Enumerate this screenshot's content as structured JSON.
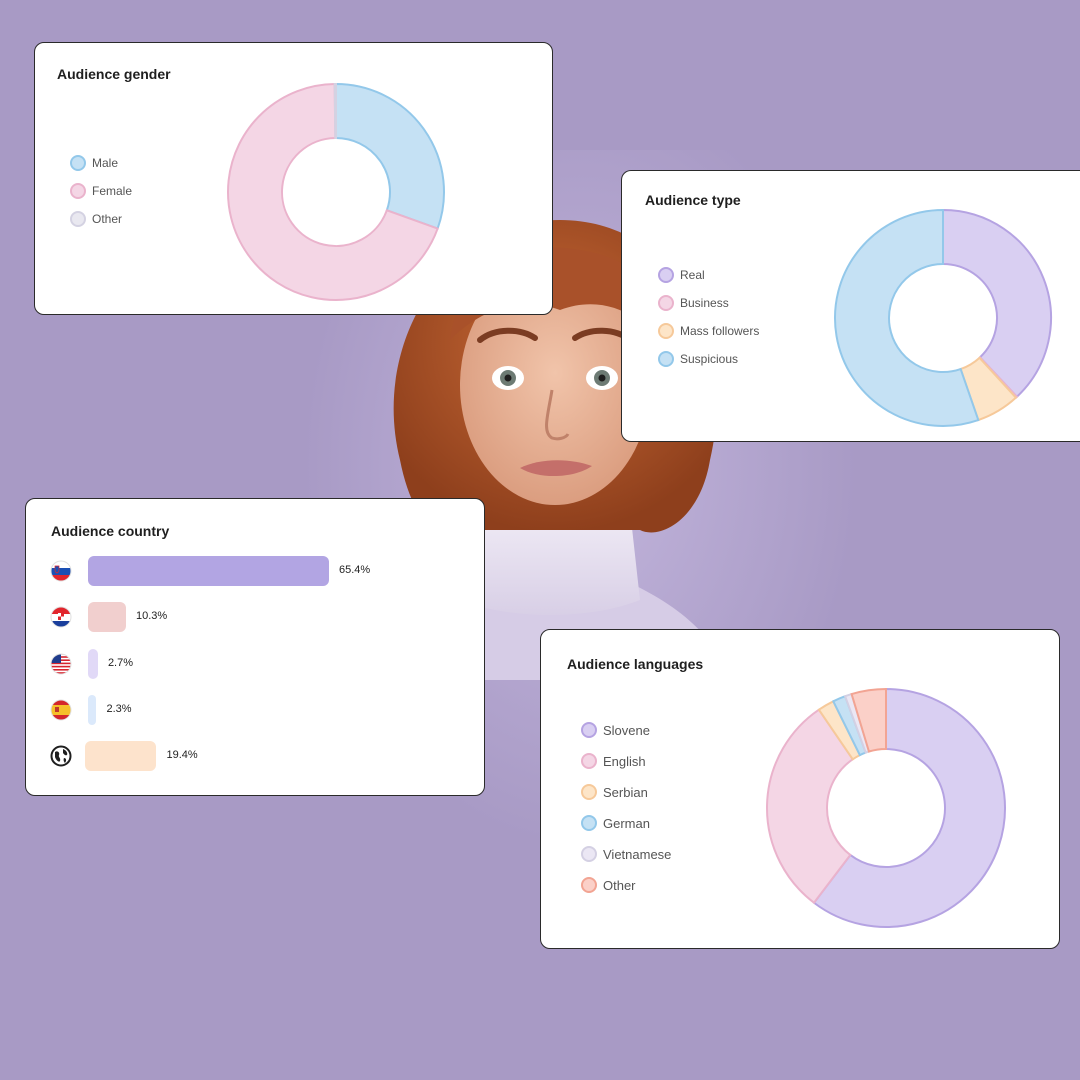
{
  "colors": {
    "background": "#a89ac5"
  },
  "gender": {
    "title": "Audience gender",
    "chart_data": {
      "type": "pie",
      "title": "Audience gender",
      "categories": [
        "Male",
        "Female",
        "Other"
      ],
      "values": [
        30.5,
        69.3,
        0.2
      ],
      "fill": [
        "#c5e1f4",
        "#f4d6e5",
        "#e9e8f0"
      ],
      "stroke": [
        "#93c8ea",
        "#eab3cc",
        "#d4d2e2"
      ]
    }
  },
  "type": {
    "title": "Audience type",
    "chart_data": {
      "type": "pie",
      "title": "Audience type",
      "categories": [
        "Real",
        "Business",
        "Mass followers",
        "Suspicious"
      ],
      "values": [
        38,
        0.2,
        6.5,
        55.3
      ],
      "fill": [
        "#d9cff2",
        "#f4d6e5",
        "#fde5c8",
        "#c5e1f4"
      ],
      "stroke": [
        "#b5a3e2",
        "#eab3cc",
        "#f6c99a",
        "#93c8ea"
      ]
    }
  },
  "country": {
    "title": "Audience country",
    "chart_data": {
      "type": "bar",
      "title": "Audience country",
      "categories": [
        "Slovenia",
        "Croatia",
        "United States",
        "Spain",
        "Other"
      ],
      "values": [
        65.4,
        10.3,
        2.7,
        2.3,
        19.4
      ],
      "labels": [
        "65.4%",
        "10.3%",
        "2.7%",
        "2.3%",
        "19.4%"
      ],
      "colors": [
        "#b2a5e3",
        "#f1cfce",
        "#e1d9f7",
        "#dbe9fb",
        "#fde3cc"
      ],
      "icons": [
        "slovenia-flag",
        "croatia-flag",
        "usa-flag",
        "spain-flag",
        "globe-icon"
      ]
    }
  },
  "languages": {
    "title": "Audience languages",
    "chart_data": {
      "type": "pie",
      "title": "Audience languages",
      "categories": [
        "Slovene",
        "English",
        "Serbian",
        "German",
        "Vietnamese",
        "Other"
      ],
      "values": [
        59.5,
        29.7,
        2.2,
        1.7,
        0.9,
        4.6
      ],
      "fill": [
        "#d9cff2",
        "#f4d6e5",
        "#fde5c8",
        "#c5e1f4",
        "#ebe7f4",
        "#fbd0c8"
      ],
      "stroke": [
        "#b5a3e2",
        "#eab3cc",
        "#f6c99a",
        "#93c8ea",
        "#d4d0e3",
        "#f2a493"
      ]
    }
  }
}
